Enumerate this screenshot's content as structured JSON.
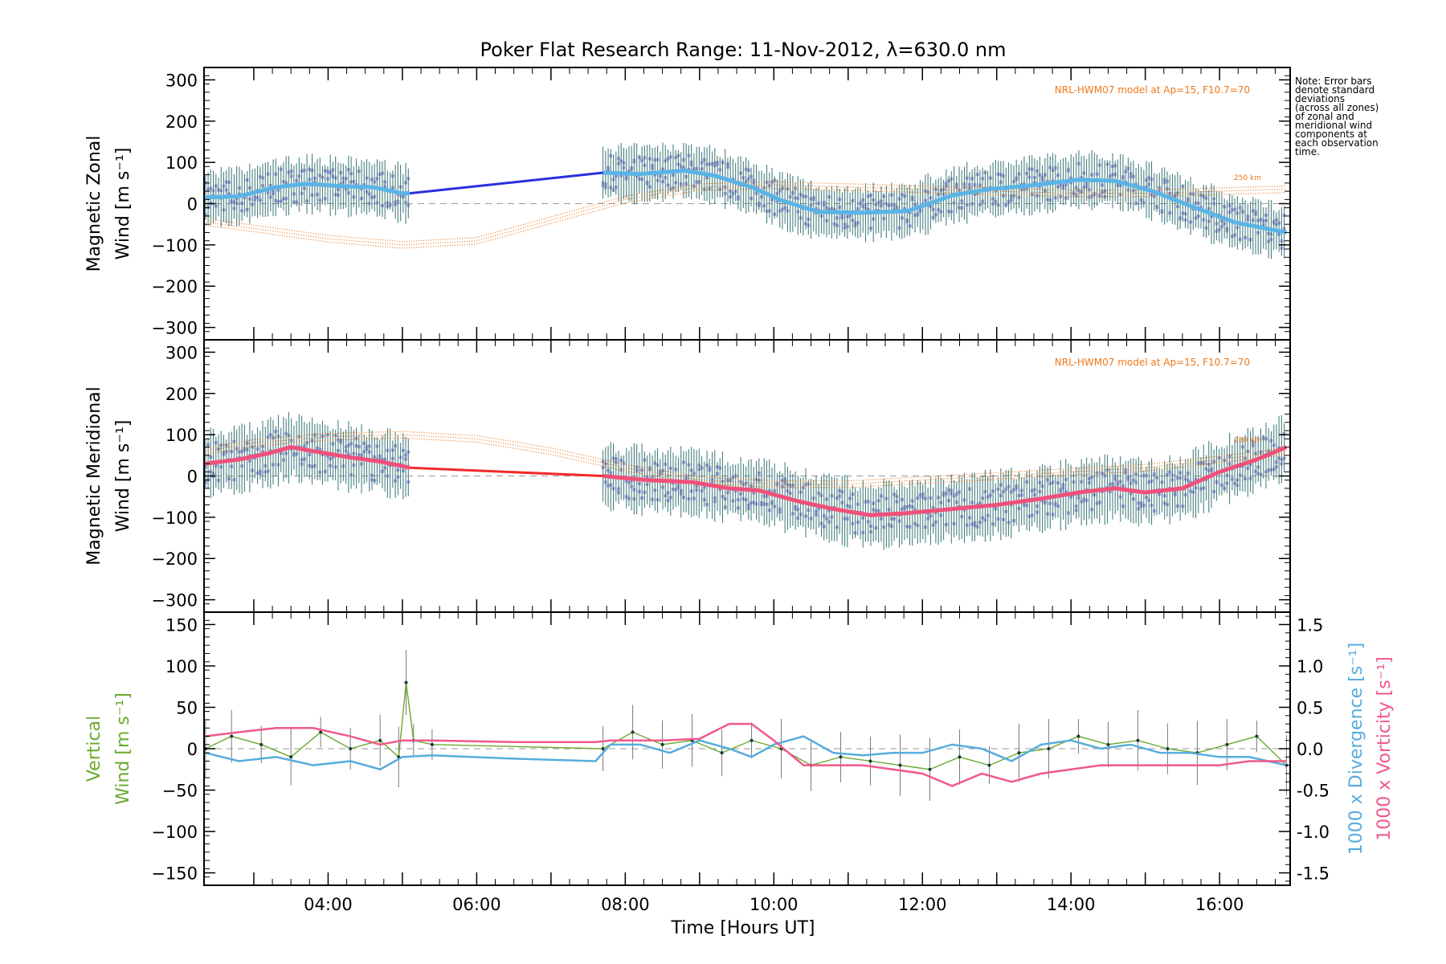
{
  "title": "Poker Flat Research Range: 11-Nov-2012, λ=630.0 nm",
  "xlabel": "Time [Hours UT]",
  "xticks": [
    "04:00",
    "06:00",
    "08:00",
    "10:00",
    "12:00",
    "14:00",
    "16:00"
  ],
  "note": [
    "Note: Error bars",
    "denote standard",
    "deviations",
    "(across all zones)",
    "of zonal and",
    "meridional wind",
    "components at",
    "each observation",
    "time."
  ],
  "model_label": "NRL-HWM07 model at Ap=15, F10.7=70",
  "model_height_label": "250 km",
  "colors": {
    "zonal": "#5ab4e6",
    "zonal_gap": "#2b2fe0",
    "meridional": "#f0507a",
    "meridional_gap": "#f22a2a",
    "model": "#f07818",
    "vertical": "#6aaa2e",
    "divergence": "#58acdc",
    "vorticity": "#f0588c",
    "scatter": "#a8a6e0",
    "errbar": "#2a6a6a",
    "grey_dash": "#9a9a9a"
  },
  "chart_data": [
    {
      "type": "line",
      "panel": "zonal",
      "ylabel": [
        "Magnetic Zonal",
        "Wind [m s⁻¹]"
      ],
      "ylim": [
        -330,
        330
      ],
      "xlim": [
        2.33,
        16.95
      ],
      "yticks": [
        300,
        200,
        100,
        0,
        -100,
        -200,
        -300
      ],
      "series": [
        {
          "role": "mean",
          "x": [
            2.35,
            2.8,
            3.3,
            3.7,
            4.2,
            4.6,
            5.0,
            5.1
          ],
          "y": [
            15,
            18,
            40,
            48,
            42,
            40,
            25,
            25
          ]
        },
        {
          "role": "gap",
          "x": [
            5.1,
            7.7
          ],
          "y": [
            25,
            75
          ]
        },
        {
          "role": "mean",
          "x": [
            7.7,
            8.2,
            8.8,
            9.2,
            9.7,
            10.1,
            10.6,
            11.2,
            11.8,
            12.4,
            12.9,
            13.5,
            14.1,
            14.6,
            15.1,
            15.6,
            16.2,
            16.9
          ],
          "y": [
            75,
            72,
            80,
            68,
            40,
            8,
            -20,
            -22,
            -18,
            20,
            35,
            45,
            58,
            55,
            30,
            -5,
            -45,
            -70
          ]
        }
      ],
      "errbar_half": 60,
      "model": {
        "x": [
          2.35,
          3.0,
          4.0,
          5.0,
          6.0,
          7.0,
          8.0,
          9.0,
          10.0,
          11.0,
          12.0,
          13.0,
          14.0,
          15.0,
          16.0,
          16.9
        ],
        "y": [
          -45,
          -60,
          -85,
          -100,
          -90,
          -40,
          10,
          40,
          45,
          40,
          35,
          30,
          25,
          25,
          30,
          35
        ]
      }
    },
    {
      "type": "line",
      "panel": "meridional",
      "ylabel": [
        "Magnetic Meridional",
        "Wind [m s⁻¹]"
      ],
      "ylim": [
        -330,
        330
      ],
      "xlim": [
        2.33,
        16.95
      ],
      "yticks": [
        300,
        200,
        100,
        0,
        -100,
        -200,
        -300
      ],
      "series": [
        {
          "role": "mean",
          "x": [
            2.35,
            2.8,
            3.2,
            3.5,
            3.8,
            4.3,
            4.7,
            5.1
          ],
          "y": [
            30,
            40,
            55,
            70,
            60,
            45,
            35,
            20
          ]
        },
        {
          "role": "gap",
          "x": [
            5.1,
            7.7
          ],
          "y": [
            20,
            0
          ]
        },
        {
          "role": "mean",
          "x": [
            7.7,
            8.3,
            8.9,
            9.4,
            9.8,
            10.3,
            10.8,
            11.3,
            11.8,
            12.4,
            13.0,
            13.6,
            14.1,
            14.6,
            15.0,
            15.5,
            16.0,
            16.5,
            16.9
          ],
          "y": [
            0,
            -10,
            -15,
            -30,
            -35,
            -60,
            -80,
            -95,
            -90,
            -80,
            -70,
            -55,
            -40,
            -30,
            -40,
            -30,
            10,
            40,
            70
          ]
        }
      ],
      "errbar_half": 70,
      "model": {
        "x": [
          2.35,
          3.0,
          4.0,
          5.0,
          6.0,
          7.0,
          8.0,
          9.0,
          10.0,
          11.0,
          12.0,
          13.0,
          14.0,
          15.0,
          16.0,
          16.9
        ],
        "y": [
          60,
          80,
          95,
          100,
          90,
          60,
          20,
          -10,
          -20,
          -20,
          -10,
          0,
          10,
          20,
          40,
          60
        ]
      }
    },
    {
      "type": "line",
      "panel": "vertical",
      "ylabel": [
        "Vertical",
        "Wind [m s⁻¹]"
      ],
      "ylim": [
        -165,
        165
      ],
      "xlim": [
        2.33,
        16.95
      ],
      "yticks": [
        150,
        100,
        50,
        0,
        -50,
        -100,
        -150
      ],
      "y2label_div": "1000 x Divergence [s⁻¹]",
      "y2label_vor": "1000 x Vorticity [s⁻¹]",
      "y2lim": [
        -1.65,
        1.65
      ],
      "y2ticks": [
        1.5,
        1.0,
        0.5,
        0.0,
        -0.5,
        -1.0,
        -1.5
      ],
      "vertical": {
        "x": [
          2.35,
          2.7,
          3.1,
          3.5,
          3.9,
          4.3,
          4.7,
          4.95,
          5.05,
          5.15,
          5.4,
          7.7,
          8.1,
          8.5,
          8.9,
          9.3,
          9.7,
          10.1,
          10.5,
          10.9,
          11.3,
          11.7,
          12.1,
          12.5,
          12.9,
          13.3,
          13.7,
          14.1,
          14.5,
          14.9,
          15.3,
          15.7,
          16.1,
          16.5,
          16.9
        ],
        "y": [
          0,
          15,
          5,
          -10,
          20,
          0,
          10,
          -10,
          80,
          10,
          5,
          0,
          20,
          5,
          10,
          -5,
          10,
          0,
          -20,
          -10,
          -15,
          -20,
          -25,
          -10,
          -20,
          -5,
          0,
          15,
          5,
          10,
          0,
          -5,
          5,
          15,
          -20
        ]
      },
      "divergence": {
        "x": [
          2.35,
          2.8,
          3.3,
          3.8,
          4.3,
          4.7,
          5.0,
          5.4,
          6.5,
          7.6,
          7.8,
          8.2,
          8.6,
          9.0,
          9.4,
          9.7,
          10.0,
          10.4,
          10.8,
          11.2,
          11.6,
          12.0,
          12.4,
          12.8,
          13.2,
          13.6,
          14.0,
          14.4,
          14.8,
          15.2,
          15.6,
          16.0,
          16.4,
          16.9
        ],
        "y": [
          -0.05,
          -0.15,
          -0.1,
          -0.2,
          -0.15,
          -0.25,
          -0.1,
          -0.08,
          -0.12,
          -0.15,
          0.05,
          0.05,
          -0.05,
          0.1,
          0.0,
          -0.1,
          0.05,
          0.15,
          -0.05,
          -0.08,
          -0.05,
          -0.05,
          0.05,
          0.0,
          -0.15,
          0.05,
          0.1,
          0.0,
          0.05,
          -0.05,
          -0.05,
          -0.1,
          -0.1,
          -0.2
        ]
      },
      "vorticity": {
        "x": [
          2.35,
          2.8,
          3.3,
          3.8,
          4.3,
          4.7,
          5.0,
          5.4,
          6.5,
          7.6,
          7.8,
          8.5,
          9.0,
          9.4,
          9.7,
          10.0,
          10.4,
          10.8,
          11.2,
          11.6,
          12.0,
          12.4,
          12.8,
          13.2,
          13.6,
          14.0,
          14.4,
          14.8,
          15.2,
          15.6,
          16.0,
          16.4,
          16.9
        ],
        "y": [
          0.15,
          0.2,
          0.25,
          0.25,
          0.15,
          0.05,
          0.1,
          0.1,
          0.08,
          0.08,
          0.1,
          0.1,
          0.12,
          0.3,
          0.3,
          0.1,
          -0.2,
          -0.2,
          -0.2,
          -0.25,
          -0.3,
          -0.45,
          -0.3,
          -0.4,
          -0.3,
          -0.25,
          -0.2,
          -0.2,
          -0.2,
          -0.2,
          -0.2,
          -0.15,
          -0.15
        ]
      }
    }
  ]
}
